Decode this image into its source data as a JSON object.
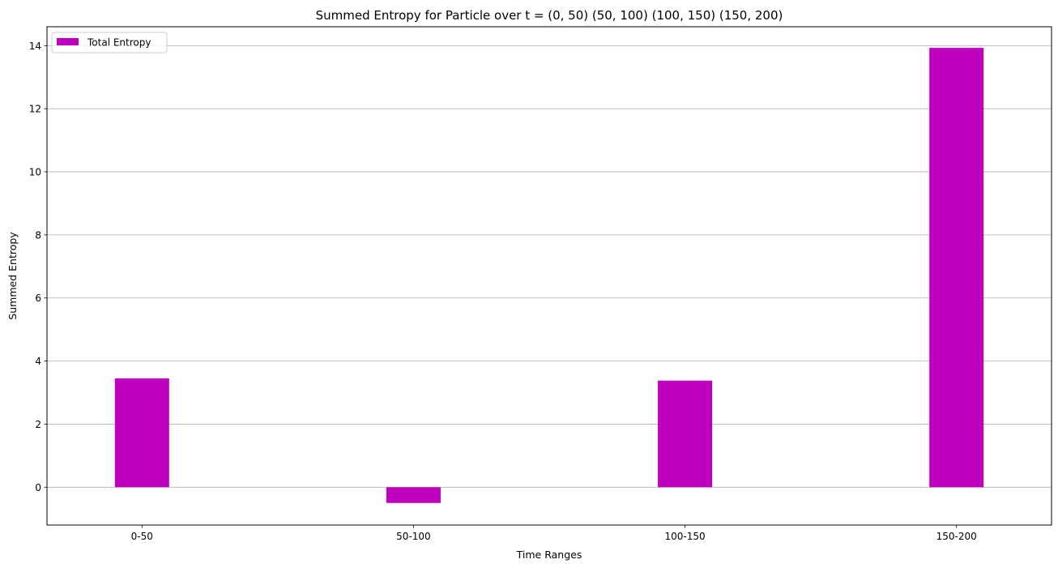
{
  "chart_data": {
    "type": "bar",
    "title": "Summed Entropy for Particle over t = (0, 50) (50, 100) (100, 150) (150, 200)",
    "xlabel": "Time Ranges",
    "ylabel": "Summed Entropy",
    "categories": [
      "0-50",
      "50-100",
      "100-150",
      "150-200"
    ],
    "series": [
      {
        "name": "Total Entropy",
        "values": [
          3.45,
          -0.5,
          3.38,
          13.93
        ],
        "color": "#bf00bf"
      }
    ],
    "ylim": [
      -1.2,
      14.6
    ],
    "yticks": [
      0,
      2,
      4,
      6,
      8,
      10,
      12,
      14
    ],
    "grid": "horizontal",
    "legend_position": "top-left"
  }
}
